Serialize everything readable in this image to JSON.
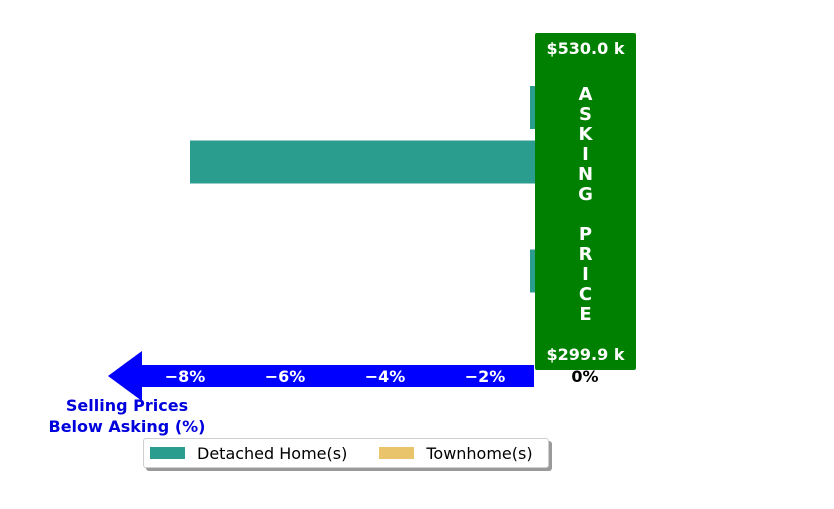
{
  "chart_data": {
    "type": "bar",
    "orientation": "horizontal",
    "xlabel": "Selling Prices\nBelow Asking (%)",
    "xlim": [
      -8.5,
      0
    ],
    "xticks": [
      -8,
      -6,
      -4,
      -2,
      0
    ],
    "xtick_labels": [
      "−8%",
      "−6%",
      "−4%",
      "−2%",
      "0%"
    ],
    "rows": [
      {
        "series": "Detached Home(s)",
        "value": -1.1
      },
      {
        "series": "Detached Home(s)",
        "value": -7.9
      },
      {
        "series": "Townhome(s)",
        "value": 0.2
      },
      {
        "series": "Detached Home(s)",
        "value": -1.1
      },
      {
        "series": "Detached Home(s)",
        "value": 0.2
      }
    ],
    "asking_price_box": {
      "top_label": "$530.0 k",
      "bottom_label": "$299.9 k",
      "text": "ASKING PRICE",
      "color": "#008000"
    },
    "legend": {
      "placement": "bottom",
      "entries": [
        {
          "name": "Detached Home(s)",
          "color": "#2a9d8f"
        },
        {
          "name": "Townhome(s)",
          "color": "#e9c46a"
        }
      ]
    },
    "arrow_color": "#0000ff"
  }
}
